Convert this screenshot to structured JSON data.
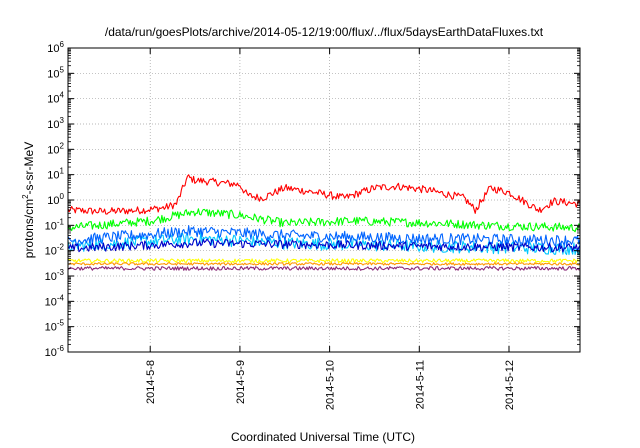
{
  "chart_data": {
    "type": "line",
    "title": "/data/run/goesPlots/archive/2014-05-12/19:00/flux/../flux/5daysEarthDataFluxes.txt",
    "xlabel": "Coordinated Universal Time (UTC)",
    "ylabel": "protons/cm²-s-sr-MeV",
    "ylabel_parts": [
      "protons/cm",
      "2",
      "-s-sr-MeV"
    ],
    "yscale": "log",
    "ylim": [
      1e-06,
      1000000.0
    ],
    "y_ticks": [
      {
        "base": "10",
        "exp": "-6",
        "value": -6
      },
      {
        "base": "10",
        "exp": "-5",
        "value": -5
      },
      {
        "base": "10",
        "exp": "-4",
        "value": -4
      },
      {
        "base": "10",
        "exp": "-3",
        "value": -3
      },
      {
        "base": "10",
        "exp": "-2",
        "value": -2
      },
      {
        "base": "10",
        "exp": "-1",
        "value": -1
      },
      {
        "base": "10",
        "exp": "0",
        "value": 0
      },
      {
        "base": "10",
        "exp": "1",
        "value": 1
      },
      {
        "base": "10",
        "exp": "2",
        "value": 2
      },
      {
        "base": "10",
        "exp": "3",
        "value": 3
      },
      {
        "base": "10",
        "exp": "4",
        "value": 4
      },
      {
        "base": "10",
        "exp": "5",
        "value": 5
      },
      {
        "base": "10",
        "exp": "6",
        "value": 6
      }
    ],
    "xlim": [
      "2014-05-07T02:00",
      "2014-05-12T19:00"
    ],
    "x_ticks": [
      "2014-5-8",
      "2014-5-9",
      "2014-5-10",
      "2014-5-11",
      "2014-5-12"
    ],
    "grid": true,
    "series": [
      {
        "color": "#ff0000",
        "noise": 0.3,
        "points": [
          [
            "2014-05-07T02:00",
            0.4
          ],
          [
            "2014-05-07T12:00",
            0.35
          ],
          [
            "2014-05-07T22:00",
            0.4
          ],
          [
            "2014-05-08T04:00",
            0.5
          ],
          [
            "2014-05-08T07:00",
            0.7
          ],
          [
            "2014-05-08T10:00",
            8
          ],
          [
            "2014-05-08T12:00",
            6
          ],
          [
            "2014-05-08T18:00",
            5
          ],
          [
            "2014-05-09T00:00",
            4
          ],
          [
            "2014-05-09T02:00",
            1.5
          ],
          [
            "2014-05-09T06:00",
            1.2
          ],
          [
            "2014-05-09T12:00",
            3
          ],
          [
            "2014-05-09T20:00",
            2
          ],
          [
            "2014-05-10T04:00",
            1.2
          ],
          [
            "2014-05-10T12:00",
            3
          ],
          [
            "2014-05-10T18:00",
            3.5
          ],
          [
            "2014-05-11T02:00",
            2.5
          ],
          [
            "2014-05-11T12:00",
            1.2
          ],
          [
            "2014-05-11T15:00",
            0.4
          ],
          [
            "2014-05-11T19:00",
            3
          ],
          [
            "2014-05-12T00:00",
            2
          ],
          [
            "2014-05-12T08:00",
            0.4
          ],
          [
            "2014-05-12T12:00",
            0.9
          ],
          [
            "2014-05-12T19:00",
            0.7
          ]
        ]
      },
      {
        "color": "#00ff00",
        "noise": 0.35,
        "points": [
          [
            "2014-05-07T02:00",
            0.08
          ],
          [
            "2014-05-08T00:00",
            0.15
          ],
          [
            "2014-05-08T12:00",
            0.35
          ],
          [
            "2014-05-09T00:00",
            0.25
          ],
          [
            "2014-05-09T12:00",
            0.12
          ],
          [
            "2014-05-10T06:00",
            0.15
          ],
          [
            "2014-05-11T06:00",
            0.12
          ],
          [
            "2014-05-11T18:00",
            0.1
          ],
          [
            "2014-05-12T19:00",
            0.08
          ]
        ]
      },
      {
        "color": "#00c8ff",
        "noise": 0.5,
        "points": [
          [
            "2014-05-07T02:00",
            0.015
          ],
          [
            "2014-05-08T12:00",
            0.03
          ],
          [
            "2014-05-09T12:00",
            0.02
          ],
          [
            "2014-05-11T00:00",
            0.015
          ],
          [
            "2014-05-12T19:00",
            0.012
          ]
        ]
      },
      {
        "color": "#0064ff",
        "noise": 0.45,
        "points": [
          [
            "2014-05-07T02:00",
            0.025
          ],
          [
            "2014-05-08T12:00",
            0.06
          ],
          [
            "2014-05-09T12:00",
            0.04
          ],
          [
            "2014-05-11T00:00",
            0.03
          ],
          [
            "2014-05-12T19:00",
            0.025
          ]
        ]
      },
      {
        "color": "#0000c8",
        "noise": 0.35,
        "points": [
          [
            "2014-05-07T02:00",
            0.012
          ],
          [
            "2014-05-08T12:00",
            0.02
          ],
          [
            "2014-05-09T12:00",
            0.018
          ],
          [
            "2014-05-11T00:00",
            0.015
          ],
          [
            "2014-05-12T19:00",
            0.013
          ]
        ]
      },
      {
        "color": "#ffff00",
        "noise": 0.15,
        "points": [
          [
            "2014-05-07T02:00",
            0.004
          ],
          [
            "2014-05-12T19:00",
            0.004
          ]
        ]
      },
      {
        "color": "#ff9600",
        "noise": 0.1,
        "points": [
          [
            "2014-05-07T02:00",
            0.003
          ],
          [
            "2014-05-12T19:00",
            0.003
          ]
        ]
      },
      {
        "color": "#8b2a78",
        "noise": 0.15,
        "points": [
          [
            "2014-05-07T02:00",
            0.002
          ],
          [
            "2014-05-12T19:00",
            0.002
          ]
        ]
      }
    ]
  }
}
